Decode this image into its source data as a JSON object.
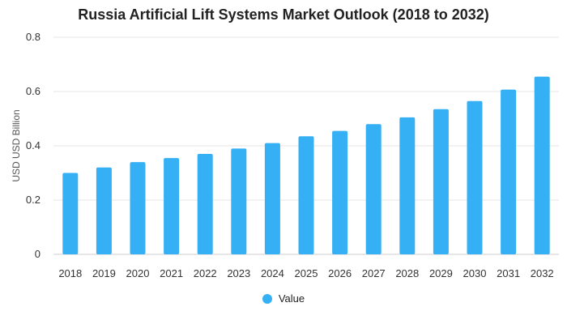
{
  "chart_data": {
    "type": "bar",
    "title": "Russia Artificial Lift Systems Market Outlook (2018 to 2032)",
    "xlabel": "",
    "ylabel": "USD USD Billion",
    "categories": [
      "2018",
      "2019",
      "2020",
      "2021",
      "2022",
      "2023",
      "2024",
      "2025",
      "2026",
      "2027",
      "2028",
      "2029",
      "2030",
      "2031",
      "2032"
    ],
    "series": [
      {
        "name": "Value",
        "color": "#36b0f5",
        "values": [
          0.3,
          0.32,
          0.34,
          0.355,
          0.37,
          0.39,
          0.41,
          0.435,
          0.455,
          0.48,
          0.505,
          0.535,
          0.565,
          0.607,
          0.655
        ]
      }
    ],
    "ylim": [
      0,
      0.8
    ],
    "yticks": [
      "0",
      "0.2",
      "0.4",
      "0.6",
      "0.8"
    ],
    "grid": true,
    "legend_position": "bottom"
  }
}
